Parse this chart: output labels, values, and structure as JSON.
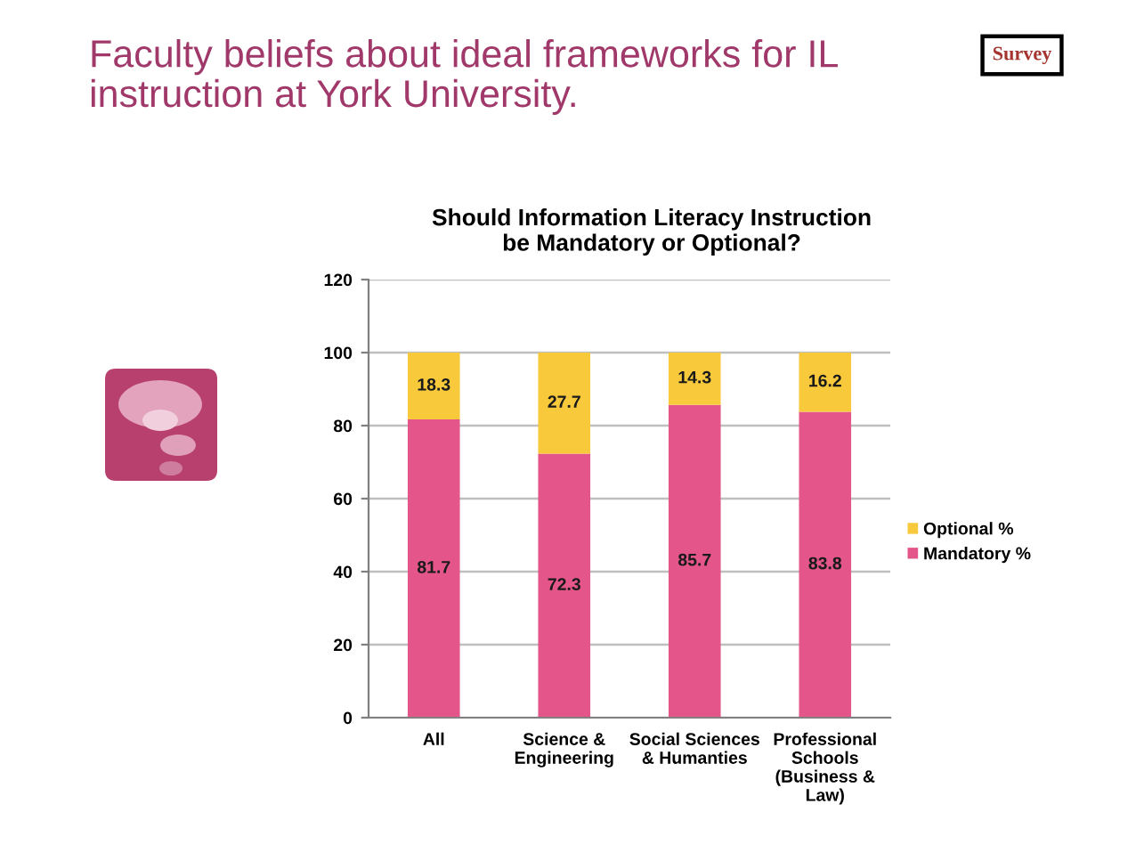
{
  "chart_data": {
    "type": "bar",
    "title": "Should Information Literacy Instruction\nbe Mandatory or Optional?",
    "annotations": [
      "Faculty beliefs about ideal frameworks for IL\ninstruction at York University.",
      "Survey"
    ],
    "categories": [
      "All",
      "Science &\nEngineering",
      "Social Sciences\n& Humanties",
      "Professional\nSchools\n(Business &\nLaw)"
    ],
    "series": [
      {
        "name": "Mandatory %",
        "color": "#e4568a",
        "values": [
          81.7,
          72.3,
          85.7,
          83.8
        ]
      },
      {
        "name": "Optional %",
        "color": "#f9c93c",
        "values": [
          18.3,
          27.7,
          14.3,
          16.2
        ]
      }
    ],
    "stacked": true,
    "ylim": [
      0,
      120
    ],
    "yticks": [
      0,
      20,
      40,
      60,
      80,
      100,
      120
    ],
    "grid": "y",
    "legend": "right",
    "data_labels": true
  }
}
